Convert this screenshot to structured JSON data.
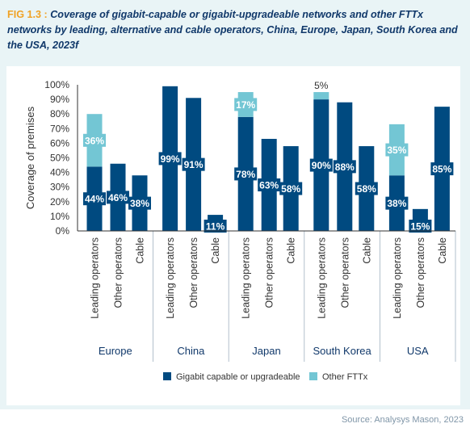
{
  "figure": {
    "label": "FIG 1.3 :",
    "title": "Coverage of gigabit-capable or gigabit-upgradeable networks and other FTTx networks by leading, alternative and cable operators, China, Europe, Japan, South Korea and the USA, 2023f",
    "source": "Source: Analysys Mason, 2023"
  },
  "colors": {
    "gigabit": "#004a80",
    "other_fttx": "#73c6d4",
    "panel_background": "#e9f4f6",
    "axis": "#333333",
    "group_divider": "#9fb0c0"
  },
  "chart_data": {
    "type": "bar",
    "stacked": true,
    "ylabel": "Coverage of premises",
    "ylim": [
      0,
      100
    ],
    "yticks": [
      "0%",
      "10%",
      "20%",
      "30%",
      "40%",
      "50%",
      "60%",
      "70%",
      "80%",
      "90%",
      "100%"
    ],
    "grid": false,
    "legend_position": "bottom",
    "groups": [
      {
        "name": "Europe",
        "bars": [
          {
            "category": "Leading operators",
            "gigabit": 44,
            "gigabit_label": "44%",
            "other": 36,
            "other_label": "36%"
          },
          {
            "category": "Other operators",
            "gigabit": 46,
            "gigabit_label": "46%",
            "other": 0,
            "other_label": ""
          },
          {
            "category": "Cable",
            "gigabit": 38,
            "gigabit_label": "38%",
            "other": 0,
            "other_label": ""
          }
        ]
      },
      {
        "name": "China",
        "bars": [
          {
            "category": "Leading operators",
            "gigabit": 99,
            "gigabit_label": "99%",
            "other": 0,
            "other_label": ""
          },
          {
            "category": "Other operators",
            "gigabit": 91,
            "gigabit_label": "91%",
            "other": 0,
            "other_label": ""
          },
          {
            "category": "Cable",
            "gigabit": 11,
            "gigabit_label": "11%",
            "other": 0,
            "other_label": ""
          }
        ]
      },
      {
        "name": "Japan",
        "bars": [
          {
            "category": "Leading operators",
            "gigabit": 78,
            "gigabit_label": "78%",
            "other": 17,
            "other_label": "17%"
          },
          {
            "category": "Other operators",
            "gigabit": 63,
            "gigabit_label": "63%",
            "other": 0,
            "other_label": ""
          },
          {
            "category": "Cable",
            "gigabit": 58,
            "gigabit_label": "58%",
            "other": 0,
            "other_label": ""
          }
        ]
      },
      {
        "name": "South Korea",
        "bars": [
          {
            "category": "Leading operators",
            "gigabit": 90,
            "gigabit_label": "90%",
            "other": 5,
            "other_label": "5%"
          },
          {
            "category": "Other operators",
            "gigabit": 88,
            "gigabit_label": "88%",
            "other": 0,
            "other_label": ""
          },
          {
            "category": "Cable",
            "gigabit": 58,
            "gigabit_label": "58%",
            "other": 0,
            "other_label": ""
          }
        ]
      },
      {
        "name": "USA",
        "bars": [
          {
            "category": "Leading operators",
            "gigabit": 38,
            "gigabit_label": "38%",
            "other": 35,
            "other_label": "35%"
          },
          {
            "category": "Other operators",
            "gigabit": 15,
            "gigabit_label": "15%",
            "other": 0,
            "other_label": ""
          },
          {
            "category": "Cable",
            "gigabit": 85,
            "gigabit_label": "85%",
            "other": 0,
            "other_label": ""
          }
        ]
      }
    ],
    "series": [
      {
        "key": "gigabit",
        "name": "Gigabit capable or upgradeable"
      },
      {
        "key": "other",
        "name": "Other FTTx"
      }
    ]
  }
}
